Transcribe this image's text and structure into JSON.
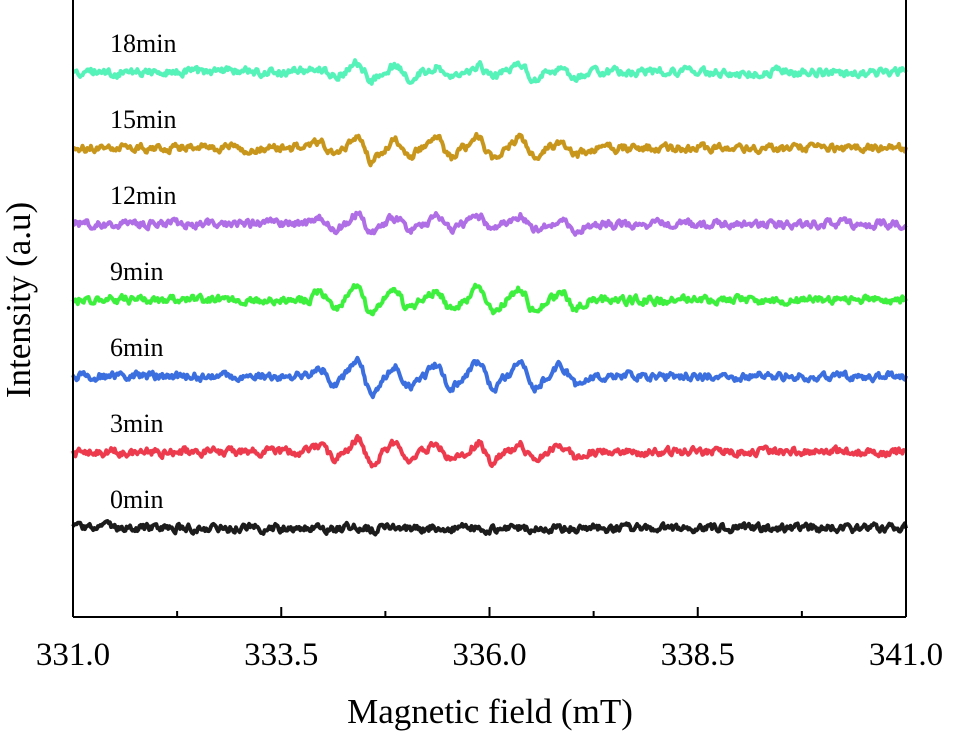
{
  "chart_data": {
    "type": "line",
    "xlabel": "Magnetic field (mT)",
    "ylabel": "Intensity (a.u)",
    "xlim": [
      331.0,
      341.0
    ],
    "xticks": [
      "331.0",
      "333.5",
      "336.0",
      "338.5",
      "341.0"
    ],
    "grid": false,
    "legend": "none (series labelled directly above each trace)",
    "series": [
      {
        "name": "0min",
        "color": "#1c1c1c",
        "peak_scale": 0.05,
        "offset": 0
      },
      {
        "name": "3min",
        "color": "#ee3a4d",
        "peak_scale": 0.8,
        "offset": 1
      },
      {
        "name": "6min",
        "color": "#3b6fe0",
        "peak_scale": 1.1,
        "offset": 2
      },
      {
        "name": "9min",
        "color": "#3ef03e",
        "peak_scale": 1.0,
        "offset": 3
      },
      {
        "name": "12min",
        "color": "#b06ee6",
        "peak_scale": 0.7,
        "offset": 4
      },
      {
        "name": "15min",
        "color": "#c9961c",
        "peak_scale": 0.9,
        "offset": 5
      },
      {
        "name": "18min",
        "color": "#55f2b9",
        "peak_scale": 0.55,
        "offset": 6
      }
    ],
    "peaks_mT": [
      {
        "x": 334.05,
        "a": 0.55
      },
      {
        "x": 334.5,
        "a": 1.1
      },
      {
        "x": 334.95,
        "a": 0.7
      },
      {
        "x": 335.45,
        "a": 0.75
      },
      {
        "x": 335.95,
        "a": 0.85
      },
      {
        "x": 336.45,
        "a": 0.8
      },
      {
        "x": 336.95,
        "a": 0.6
      }
    ]
  }
}
